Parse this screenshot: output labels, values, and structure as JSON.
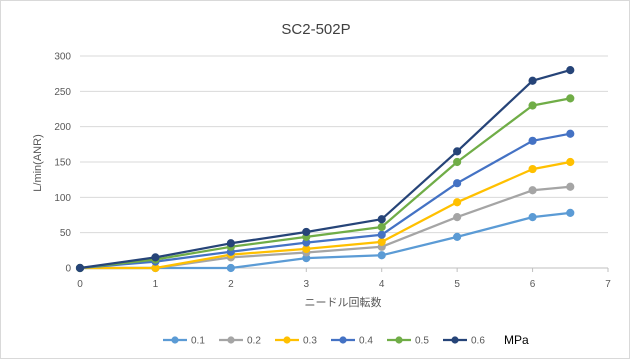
{
  "chart_data": {
    "type": "line",
    "title": "SC2-502P",
    "xlabel": "ニードル回転数",
    "ylabel": "L/min(ANR)",
    "xlim": [
      0,
      7
    ],
    "ylim": [
      0,
      300
    ],
    "x_ticks": [
      0,
      1,
      2,
      3,
      4,
      5,
      6,
      7
    ],
    "y_ticks": [
      0,
      50,
      100,
      150,
      200,
      250,
      300
    ],
    "grid": true,
    "legend_position": "bottom",
    "legend_unit": "MPa",
    "x": [
      0,
      1,
      2,
      3,
      4,
      5,
      6,
      6.5
    ],
    "series": [
      {
        "name": "0.1",
        "color": "#5b9bd5",
        "values": [
          0,
          0,
          0,
          14,
          18,
          44,
          72,
          78
        ]
      },
      {
        "name": "0.2",
        "color": "#a5a5a5",
        "values": [
          0,
          0,
          15,
          22,
          30,
          72,
          110,
          115
        ]
      },
      {
        "name": "0.3",
        "color": "#ffc000",
        "values": [
          0,
          0,
          19,
          27,
          37,
          93,
          140,
          150
        ]
      },
      {
        "name": "0.4",
        "color": "#4472c4",
        "values": [
          0,
          9,
          23,
          36,
          47,
          120,
          180,
          190
        ]
      },
      {
        "name": "0.5",
        "color": "#70ad47",
        "values": [
          0,
          12,
          30,
          44,
          58,
          150,
          230,
          240
        ]
      },
      {
        "name": "0.6",
        "color": "#264478",
        "values": [
          0,
          15,
          35,
          51,
          69,
          165,
          265,
          280
        ]
      }
    ]
  }
}
